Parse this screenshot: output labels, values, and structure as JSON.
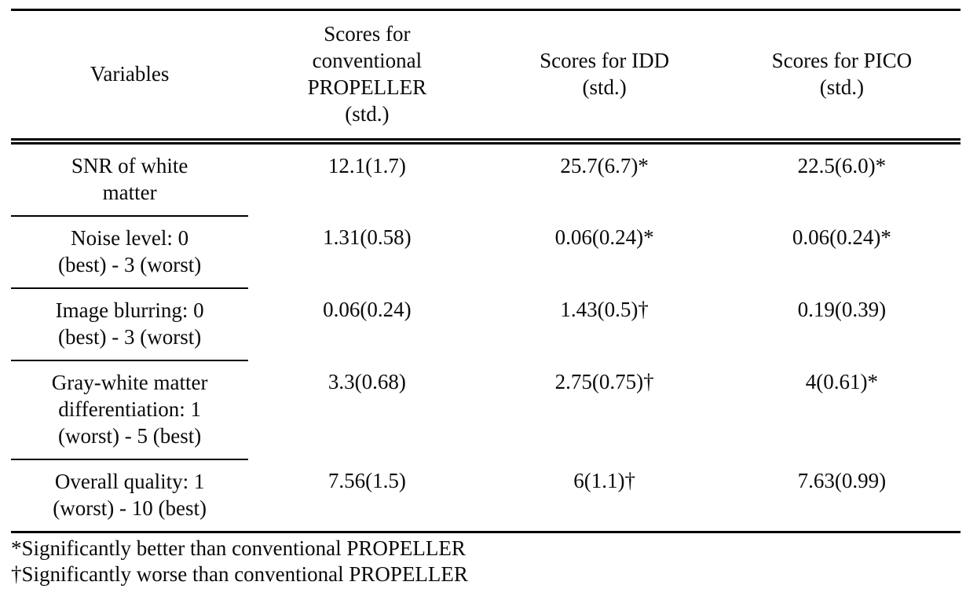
{
  "table": {
    "columns": [
      {
        "id": "variables",
        "label_lines": [
          "Variables"
        ]
      },
      {
        "id": "propeller",
        "label_lines": [
          "Scores for",
          "conventional",
          "PROPELLER",
          "(std.)"
        ]
      },
      {
        "id": "idd",
        "label_lines": [
          "Scores for IDD",
          "(std.)"
        ]
      },
      {
        "id": "pico",
        "label_lines": [
          "Scores for PICO",
          "(std.)"
        ]
      }
    ],
    "rows": [
      {
        "variable_lines": [
          "SNR of white",
          "matter"
        ],
        "propeller": "12.1(1.7)",
        "idd": "25.7(6.7)*",
        "pico": "22.5(6.0)*"
      },
      {
        "variable_lines": [
          "Noise level: 0",
          "(best) - 3 (worst)"
        ],
        "propeller": "1.31(0.58)",
        "idd": "0.06(0.24)*",
        "pico": "0.06(0.24)*"
      },
      {
        "variable_lines": [
          "Image blurring: 0",
          "(best) - 3 (worst)"
        ],
        "propeller": "0.06(0.24)",
        "idd": "1.43(0.5)†",
        "pico": "0.19(0.39)"
      },
      {
        "variable_lines": [
          "Gray-white matter",
          "differentiation: 1",
          "(worst) - 5 (best)"
        ],
        "propeller": "3.3(0.68)",
        "idd": "2.75(0.75)†",
        "pico": "4(0.61)*"
      },
      {
        "variable_lines": [
          "Overall quality: 1",
          "(worst) - 10 (best)"
        ],
        "propeller": "7.56(1.5)",
        "idd": "6(1.1)†",
        "pico": "7.63(0.99)"
      }
    ],
    "footnotes": [
      "*Significantly better than conventional PROPELLER",
      "†Significantly worse than conventional PROPELLER"
    ]
  },
  "colors": {
    "text": "#0a0a0a",
    "background": "#ffffff",
    "rule": "#000000"
  }
}
